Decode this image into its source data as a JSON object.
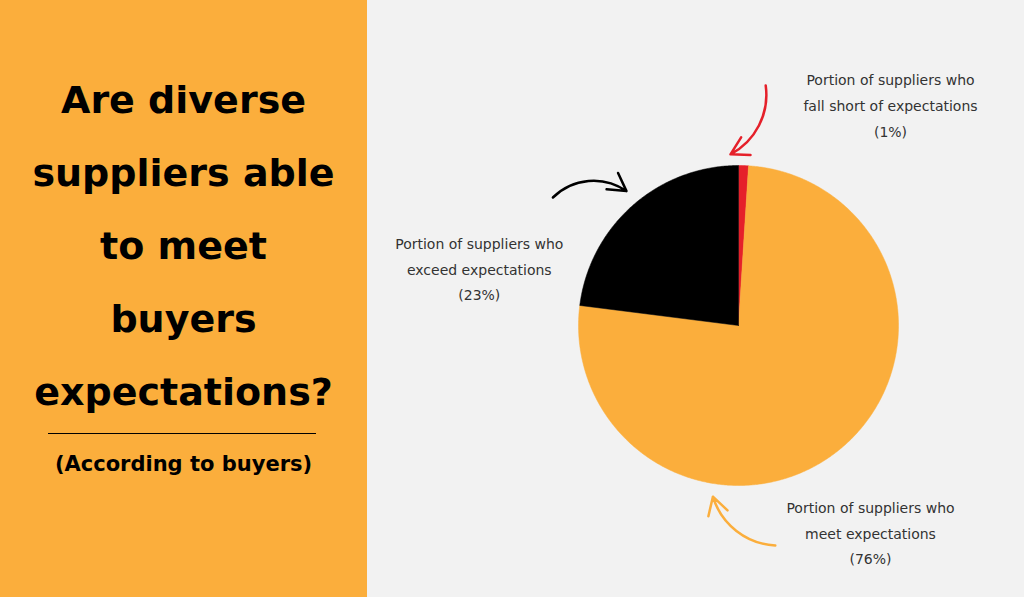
{
  "chart_data": {
    "type": "pie",
    "title": "Are diverse\nsuppliers able\nto meet\nbuyers\nexpectations?",
    "subtitle": "(According to buyers)",
    "categories": [
      "Portion of suppliers who\nfall short of expectations",
      "Portion of suppliers who\nmeet expectations",
      "Portion of suppliers who\nexceed expectations"
    ],
    "values": [
      1,
      76,
      23
    ],
    "value_labels": [
      "(1%)",
      "(76%)",
      "(23%)"
    ],
    "colors": [
      "#e5202a",
      "#fbae3c",
      "#000000"
    ],
    "data_labels": true
  }
}
